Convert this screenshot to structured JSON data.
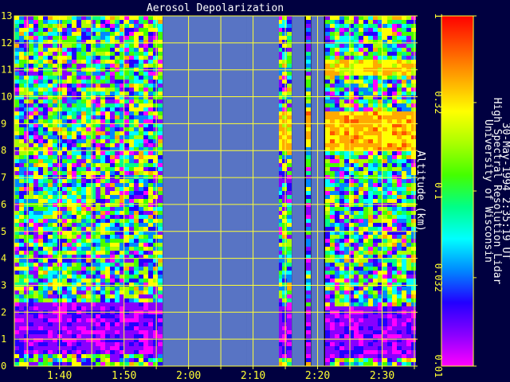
{
  "chart_data": {
    "type": "heatmap",
    "title": "Aerosol Depolarization",
    "ylabel": "Altitude (km)",
    "ylim": [
      0,
      13
    ],
    "yticks": [
      "0",
      "1",
      "2",
      "3",
      "4",
      "5",
      "6",
      "7",
      "8",
      "9",
      "10",
      "11",
      "12",
      "13"
    ],
    "xlim": [
      "1:33",
      "2:35"
    ],
    "xticks": [
      {
        "label": "1:40",
        "t": "1:40"
      },
      {
        "label": "1:50",
        "t": "1:50"
      },
      {
        "label": "2:00",
        "t": "2:00"
      },
      {
        "label": "2:10",
        "t": "2:10"
      },
      {
        "label": "2:20",
        "t": "2:20"
      },
      {
        "label": "2:30",
        "t": "2:30"
      }
    ],
    "grid": true,
    "colorbar": {
      "scale": "log",
      "range": [
        0.01,
        1
      ],
      "ticks": [
        "1",
        "0.32",
        "0.1",
        "0.032",
        "0.01"
      ],
      "palette": [
        "#ff00ff",
        "#8800ff",
        "#2200ff",
        "#0088ff",
        "#00ffff",
        "#00ff88",
        "#44ff00",
        "#aaff00",
        "#ffff00",
        "#ffaa00",
        "#ff5500",
        "#ff0000"
      ]
    },
    "no_data_color": "#5874c4",
    "no_data_intervals": [
      [
        "1:56",
        "2:00"
      ],
      [
        "2:00",
        "2:09"
      ],
      [
        "2:09",
        "2:14"
      ],
      [
        "2:16",
        "2:18"
      ],
      [
        "2:19",
        "2:21"
      ]
    ],
    "features": [
      {
        "start": "1:33",
        "end": "1:56",
        "alt_low": 0.5,
        "alt_high": 2.3,
        "depolarization": 0.015
      },
      {
        "start": "2:14",
        "end": "2:16",
        "alt_low": 8.0,
        "alt_high": 9.5,
        "depolarization": 0.32
      },
      {
        "start": "2:18",
        "end": "2:19",
        "alt_low": 8.1,
        "alt_high": 9.6,
        "depolarization": 0.4
      },
      {
        "start": "2:21",
        "end": "2:35",
        "alt_low": 8.0,
        "alt_high": 9.5,
        "depolarization": 0.4
      },
      {
        "start": "2:21",
        "end": "2:35",
        "alt_low": 10.8,
        "alt_high": 11.4,
        "depolarization": 0.3
      },
      {
        "start": "2:14",
        "end": "2:35",
        "alt_low": 0.3,
        "alt_high": 2.2,
        "depolarization": 0.015
      }
    ]
  },
  "sidebar": {
    "line1": "University of Wisconsin",
    "line2": "High Spectral Resolution Lidar",
    "line3": "30-May-1994  2:35:19 UT"
  }
}
